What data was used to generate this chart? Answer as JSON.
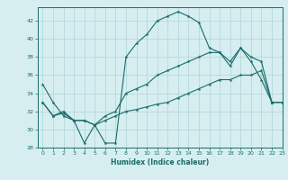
{
  "xlabel": "Humidex (Indice chaleur)",
  "ylabel": "",
  "bg_color": "#d6eef0",
  "grid_color": "#b0d4d8",
  "line_color": "#1a6b6b",
  "xlim": [
    -0.5,
    23
  ],
  "ylim": [
    28,
    43.5
  ],
  "xticks": [
    0,
    1,
    2,
    3,
    4,
    5,
    6,
    7,
    8,
    9,
    10,
    11,
    12,
    13,
    14,
    15,
    16,
    17,
    18,
    19,
    20,
    21,
    22,
    23
  ],
  "yticks": [
    28,
    30,
    32,
    34,
    36,
    38,
    40,
    42
  ],
  "line1_x": [
    0,
    1,
    2,
    3,
    4,
    5,
    6,
    7,
    8,
    9,
    10,
    11,
    12,
    13,
    14,
    15,
    16,
    17,
    18,
    19,
    20,
    21,
    22,
    23
  ],
  "line1_y": [
    35,
    33,
    31.5,
    31,
    28.5,
    30.5,
    28.5,
    28.5,
    38,
    39.5,
    40.5,
    42,
    42.5,
    43,
    42.5,
    41.8,
    39,
    38.5,
    37.5,
    39,
    37.5,
    35.5,
    33,
    33
  ],
  "line2_x": [
    0,
    1,
    2,
    3,
    4,
    5,
    6,
    7,
    8,
    9,
    10,
    11,
    12,
    13,
    14,
    15,
    16,
    17,
    18,
    19,
    20,
    21,
    22,
    23
  ],
  "line2_y": [
    33,
    31.5,
    32,
    31,
    31,
    30.5,
    31.5,
    32,
    34,
    34.5,
    35,
    36,
    36.5,
    37,
    37.5,
    38,
    38.5,
    38.5,
    37,
    39,
    38,
    37.5,
    33,
    33
  ],
  "line3_x": [
    0,
    1,
    2,
    3,
    4,
    5,
    6,
    7,
    8,
    9,
    10,
    11,
    12,
    13,
    14,
    15,
    16,
    17,
    18,
    19,
    20,
    21,
    22,
    23
  ],
  "line3_y": [
    33,
    31.5,
    31.8,
    31,
    31,
    30.5,
    31,
    31.5,
    32,
    32.2,
    32.5,
    32.8,
    33,
    33.5,
    34,
    34.5,
    35,
    35.5,
    35.5,
    36,
    36,
    36.5,
    33,
    33
  ]
}
